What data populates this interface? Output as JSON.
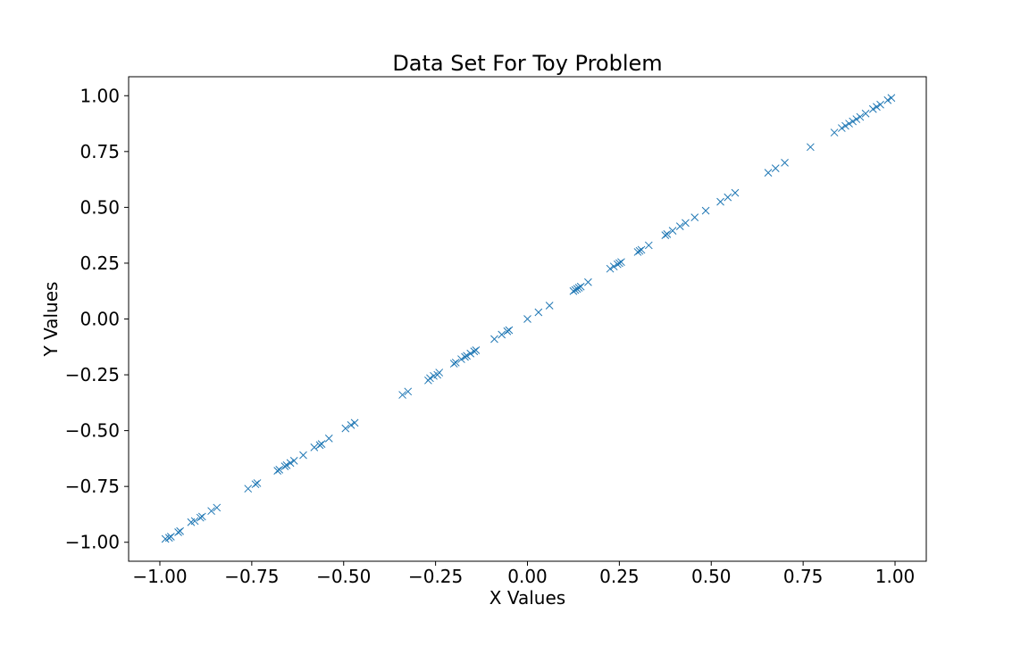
{
  "chart_data": {
    "type": "scatter",
    "title": "Data Set For Toy Problem",
    "xlabel": "X Values",
    "ylabel": "Y Values",
    "xlim": [
      -1.085,
      1.085
    ],
    "ylim": [
      -1.085,
      1.085
    ],
    "x_ticks": [
      -1.0,
      -0.75,
      -0.5,
      -0.25,
      0.0,
      0.25,
      0.5,
      0.75,
      1.0
    ],
    "x_tick_labels": [
      "−1.00",
      "−0.75",
      "−0.50",
      "−0.25",
      "0.00",
      "0.25",
      "0.50",
      "0.75",
      "1.00"
    ],
    "y_ticks": [
      1.0,
      0.75,
      0.5,
      0.25,
      0.0,
      -0.25,
      -0.5,
      -0.75,
      -1.0
    ],
    "y_tick_labels": [
      "1.00",
      "0.75",
      "0.50",
      "0.25",
      "0.00",
      "−0.25",
      "−0.50",
      "−0.75",
      "−1.00"
    ],
    "grid": false,
    "marker": "x",
    "color": "#1f77b4",
    "series": [
      {
        "points": [
          [
            -0.985,
            -0.985
          ],
          [
            -0.975,
            -0.98
          ],
          [
            -0.97,
            -0.975
          ],
          [
            -0.95,
            -0.955
          ],
          [
            -0.945,
            -0.95
          ],
          [
            -0.915,
            -0.91
          ],
          [
            -0.905,
            -0.905
          ],
          [
            -0.89,
            -0.89
          ],
          [
            -0.885,
            -0.885
          ],
          [
            -0.86,
            -0.86
          ],
          [
            -0.845,
            -0.845
          ],
          [
            -0.76,
            -0.76
          ],
          [
            -0.74,
            -0.74
          ],
          [
            -0.735,
            -0.735
          ],
          [
            -0.68,
            -0.68
          ],
          [
            -0.675,
            -0.675
          ],
          [
            -0.66,
            -0.66
          ],
          [
            -0.655,
            -0.655
          ],
          [
            -0.645,
            -0.645
          ],
          [
            -0.635,
            -0.635
          ],
          [
            -0.61,
            -0.61
          ],
          [
            -0.58,
            -0.575
          ],
          [
            -0.565,
            -0.565
          ],
          [
            -0.56,
            -0.56
          ],
          [
            -0.54,
            -0.535
          ],
          [
            -0.495,
            -0.49
          ],
          [
            -0.48,
            -0.475
          ],
          [
            -0.47,
            -0.465
          ],
          [
            -0.34,
            -0.34
          ],
          [
            -0.325,
            -0.325
          ],
          [
            -0.27,
            -0.275
          ],
          [
            -0.265,
            -0.265
          ],
          [
            -0.255,
            -0.255
          ],
          [
            -0.245,
            -0.25
          ],
          [
            -0.24,
            -0.24
          ],
          [
            -0.2,
            -0.2
          ],
          [
            -0.195,
            -0.195
          ],
          [
            -0.18,
            -0.18
          ],
          [
            -0.17,
            -0.17
          ],
          [
            -0.165,
            -0.165
          ],
          [
            -0.155,
            -0.155
          ],
          [
            -0.145,
            -0.145
          ],
          [
            -0.14,
            -0.14
          ],
          [
            -0.09,
            -0.09
          ],
          [
            -0.07,
            -0.07
          ],
          [
            -0.055,
            -0.055
          ],
          [
            -0.05,
            -0.05
          ],
          [
            0.0,
            0.0
          ],
          [
            0.03,
            0.03
          ],
          [
            0.06,
            0.06
          ],
          [
            0.125,
            0.125
          ],
          [
            0.13,
            0.13
          ],
          [
            0.135,
            0.135
          ],
          [
            0.14,
            0.14
          ],
          [
            0.145,
            0.145
          ],
          [
            0.165,
            0.165
          ],
          [
            0.225,
            0.225
          ],
          [
            0.235,
            0.235
          ],
          [
            0.245,
            0.245
          ],
          [
            0.25,
            0.25
          ],
          [
            0.255,
            0.255
          ],
          [
            0.3,
            0.3
          ],
          [
            0.305,
            0.305
          ],
          [
            0.31,
            0.31
          ],
          [
            0.33,
            0.33
          ],
          [
            0.375,
            0.375
          ],
          [
            0.38,
            0.38
          ],
          [
            0.395,
            0.395
          ],
          [
            0.415,
            0.415
          ],
          [
            0.43,
            0.43
          ],
          [
            0.455,
            0.455
          ],
          [
            0.485,
            0.485
          ],
          [
            0.525,
            0.525
          ],
          [
            0.545,
            0.545
          ],
          [
            0.565,
            0.565
          ],
          [
            0.655,
            0.655
          ],
          [
            0.675,
            0.675
          ],
          [
            0.7,
            0.7
          ],
          [
            0.77,
            0.77
          ],
          [
            0.835,
            0.835
          ],
          [
            0.855,
            0.855
          ],
          [
            0.865,
            0.865
          ],
          [
            0.875,
            0.875
          ],
          [
            0.885,
            0.885
          ],
          [
            0.895,
            0.895
          ],
          [
            0.905,
            0.905
          ],
          [
            0.92,
            0.92
          ],
          [
            0.94,
            0.94
          ],
          [
            0.95,
            0.95
          ],
          [
            0.96,
            0.96
          ],
          [
            0.98,
            0.98
          ],
          [
            0.99,
            0.99
          ]
        ]
      }
    ]
  }
}
